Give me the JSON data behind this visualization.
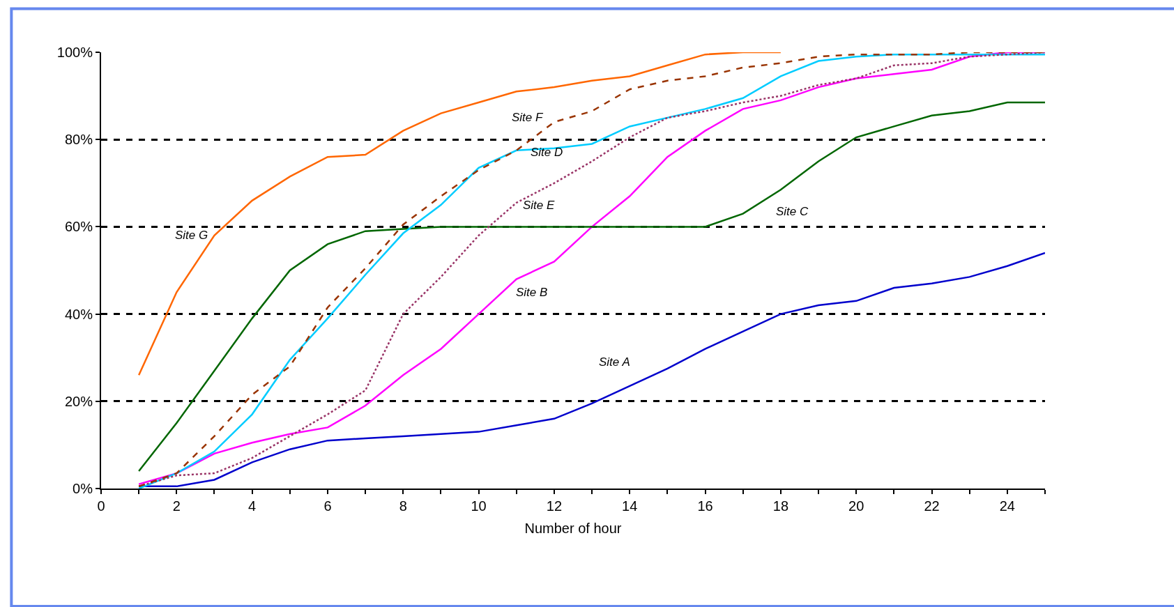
{
  "chart_data": {
    "type": "line",
    "xlabel": "Number of hour",
    "x": [
      1,
      2,
      3,
      4,
      5,
      6,
      7,
      8,
      9,
      10,
      11,
      12,
      13,
      14,
      15,
      16,
      17,
      18,
      19,
      20,
      21,
      22,
      23,
      24,
      25
    ],
    "series": [
      {
        "name": "Site A",
        "color": "#0000cc",
        "line_style": "solid",
        "values": [
          0.5,
          0.5,
          2,
          6,
          9,
          11,
          11.5,
          12,
          12.5,
          13,
          14.5,
          16,
          19.5,
          23.5,
          27.5,
          32,
          36,
          40,
          42,
          43,
          46,
          47,
          48.5,
          51,
          54
        ]
      },
      {
        "name": "Site B",
        "color": "#ff00ff",
        "line_style": "solid",
        "values": [
          1,
          3.5,
          8,
          10.5,
          12.5,
          14,
          19,
          26,
          32,
          40,
          48,
          52,
          60,
          67,
          76,
          82,
          87,
          89,
          92,
          94,
          95,
          96,
          99,
          100,
          100
        ]
      },
      {
        "name": "Site C",
        "color": "#006600",
        "line_style": "solid",
        "values": [
          4,
          15,
          27,
          39,
          50,
          56,
          59,
          59.5,
          60,
          60,
          60,
          60,
          60,
          60,
          60,
          60,
          63,
          68.5,
          75,
          80.5,
          83,
          85.5,
          86.5,
          88.5,
          88.5
        ]
      },
      {
        "name": "Site D",
        "color": "#00ccff",
        "line_style": "solid",
        "values": [
          0,
          3.5,
          8.5,
          17,
          29.5,
          39,
          49,
          58.5,
          65,
          73.5,
          77.5,
          78,
          79,
          83,
          85,
          87,
          89.5,
          94.5,
          98,
          99,
          99.5,
          99.5,
          99.5,
          99.5,
          99.5
        ]
      },
      {
        "name": "Site E",
        "color": "#993366",
        "line_style": "dotted",
        "values": [
          0.5,
          3,
          3.5,
          7,
          12,
          17,
          22.5,
          40,
          48.5,
          58,
          65.5,
          70,
          75,
          80.5,
          85,
          86.5,
          88.5,
          90,
          92.5,
          94,
          97,
          97.5,
          99,
          99.5,
          100
        ]
      },
      {
        "name": "Site F",
        "color": "#993300",
        "line_style": "dashed",
        "values": [
          0.5,
          3.5,
          12,
          21.5,
          28,
          41.5,
          50.5,
          60.5,
          67,
          73,
          77.5,
          84,
          86.5,
          91.5,
          93.5,
          94.5,
          96.5,
          97.5,
          99,
          99.5,
          99.5,
          99.5,
          100,
          100,
          100
        ]
      },
      {
        "name": "Site G",
        "color": "#ff6600",
        "line_style": "solid",
        "values": [
          26,
          45,
          58,
          66,
          71.5,
          76,
          76.5,
          82,
          86,
          88.5,
          91,
          92,
          93.5,
          94.5,
          97,
          99.5,
          100,
          100,
          null,
          null,
          null,
          null,
          null,
          null,
          null
        ]
      }
    ],
    "xlim": [
      0,
      25
    ],
    "xticks": [
      0,
      2,
      4,
      6,
      8,
      10,
      12,
      14,
      16,
      18,
      20,
      22,
      24
    ],
    "ylim": [
      0,
      100
    ],
    "yticks": [
      {
        "value": 0,
        "label": "0%"
      },
      {
        "value": 20,
        "label": "20%"
      },
      {
        "value": 40,
        "label": "40%"
      },
      {
        "value": 60,
        "label": "60%"
      },
      {
        "value": 80,
        "label": "80%"
      },
      {
        "value": 100,
        "label": "100%"
      }
    ],
    "grid": "y",
    "legend": false,
    "marker": "none"
  }
}
